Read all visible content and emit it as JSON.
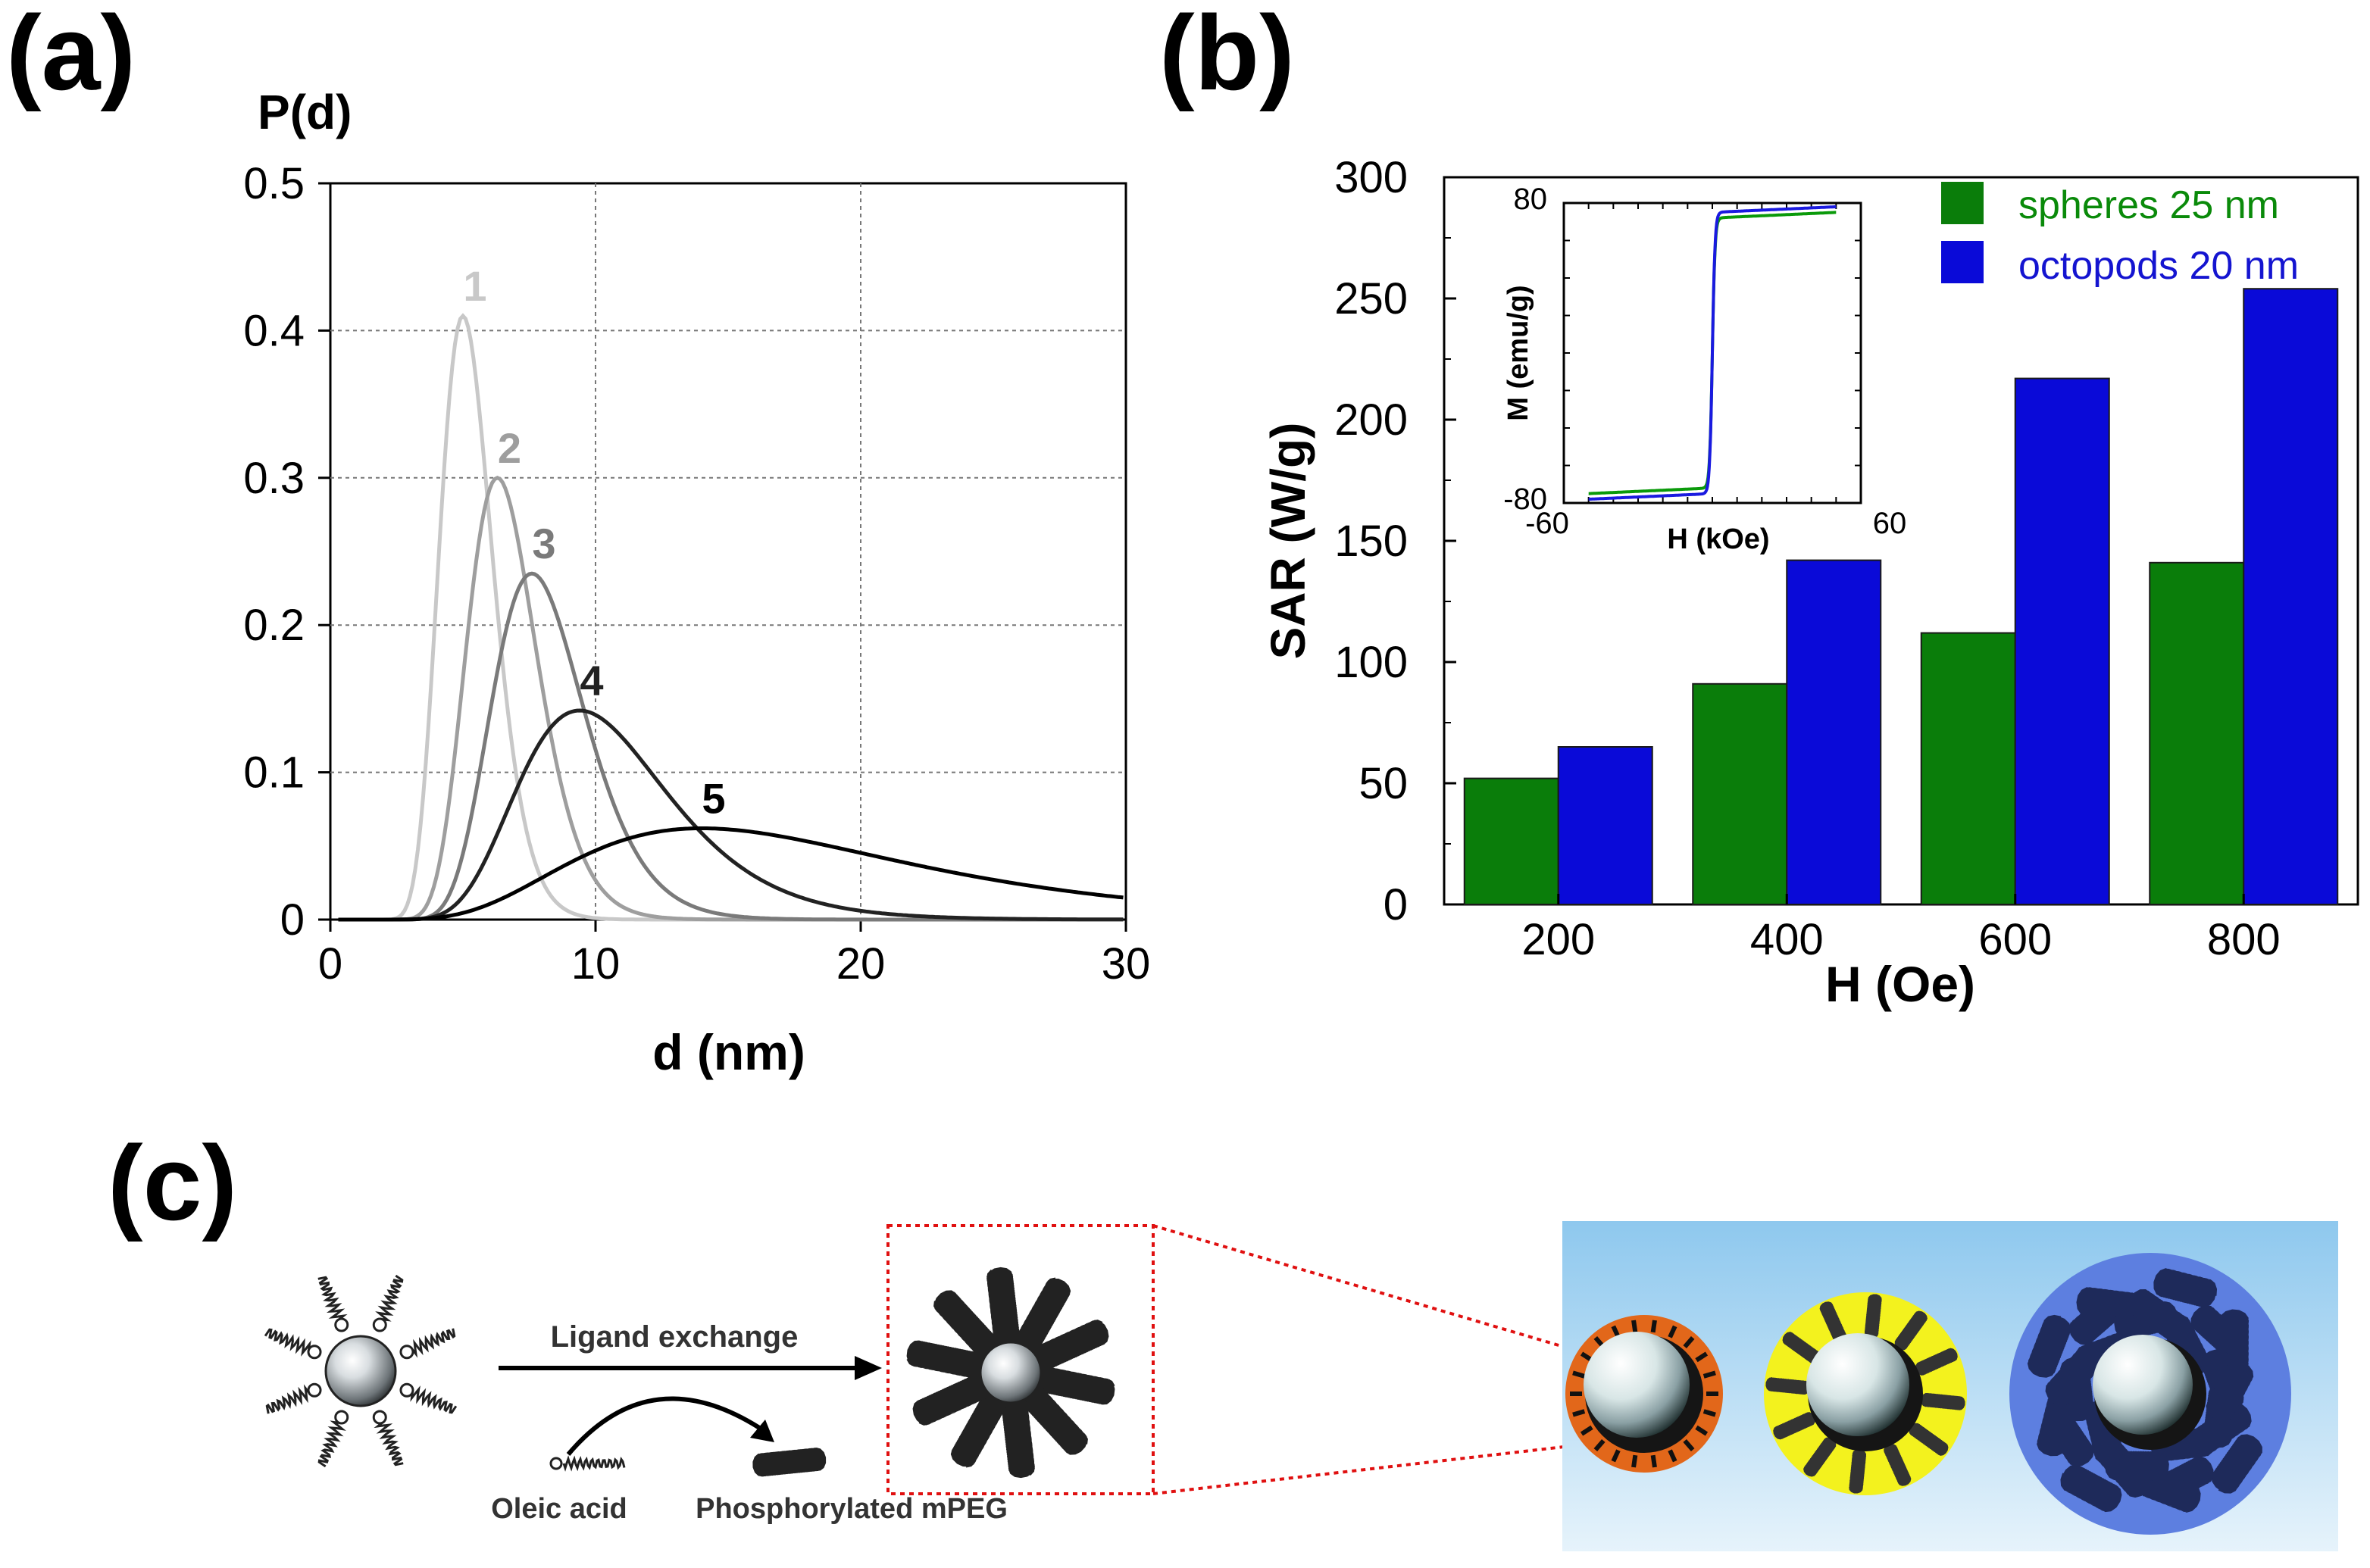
{
  "panel_labels": {
    "a": "(a)",
    "b": "(b)",
    "c": "(c)"
  },
  "chart_data": [
    {
      "type": "line",
      "panel": "a",
      "title": "",
      "xlabel": "d (nm)",
      "ylabel": "P(d)",
      "xlim": [
        0,
        30
      ],
      "ylim": [
        0,
        0.5
      ],
      "xticks": [
        0,
        10,
        20,
        30
      ],
      "yticks": [
        0,
        0.1,
        0.2,
        0.3,
        0.4,
        0.5
      ],
      "grid": true,
      "series": [
        {
          "name": "1",
          "peak_d": 5.0,
          "peak_p": 0.41,
          "sigma": 0.2,
          "color": "#c8c8c8"
        },
        {
          "name": "2",
          "peak_d": 6.3,
          "peak_p": 0.3,
          "sigma": 0.21,
          "color": "#9e9e9e"
        },
        {
          "name": "3",
          "peak_d": 7.6,
          "peak_p": 0.235,
          "sigma": 0.23,
          "color": "#7a7a7a"
        },
        {
          "name": "4",
          "peak_d": 9.4,
          "peak_p": 0.142,
          "sigma": 0.3,
          "color": "#222222"
        },
        {
          "name": "5",
          "peak_d": 14.0,
          "peak_p": 0.062,
          "sigma": 0.45,
          "color": "#000000"
        }
      ]
    },
    {
      "type": "bar",
      "panel": "b",
      "title": "",
      "xlabel": "H (Oe)",
      "ylabel": "SAR (W/g)",
      "ylim": [
        0,
        300
      ],
      "yticks": [
        0,
        50,
        100,
        150,
        200,
        250,
        300
      ],
      "categories": [
        "200",
        "400",
        "600",
        "800"
      ],
      "legend_position": "top-right",
      "series": [
        {
          "name": "spheres 25 nm",
          "color": "#0a7d0a",
          "values": [
            52,
            91,
            112,
            141
          ]
        },
        {
          "name": "octopods 20 nm",
          "color": "#0a0ad8",
          "values": [
            65,
            142,
            217,
            254
          ]
        }
      ],
      "inset": {
        "type": "line",
        "xlabel": "H (kOe)",
        "ylabel": "M (emu/g)",
        "xlim": [
          -60,
          60
        ],
        "ylim": [
          -80,
          80
        ],
        "xtick_labels": [
          "-60",
          "60"
        ],
        "ytick_labels": [
          "80",
          "-80"
        ],
        "series": [
          {
            "name": "spheres 25 nm",
            "color": "#0a9a0a",
            "ms": 72,
            "coercive": 0
          },
          {
            "name": "octopods 20 nm",
            "color": "#1a1ae0",
            "ms": 75,
            "coercive": 0
          }
        ]
      }
    }
  ],
  "schematic": {
    "ligand_exchange": "Ligand exchange",
    "oleic_acid": "Oleic acid",
    "phosphorylated_mpeg": "Phosphorylated mPEG"
  }
}
